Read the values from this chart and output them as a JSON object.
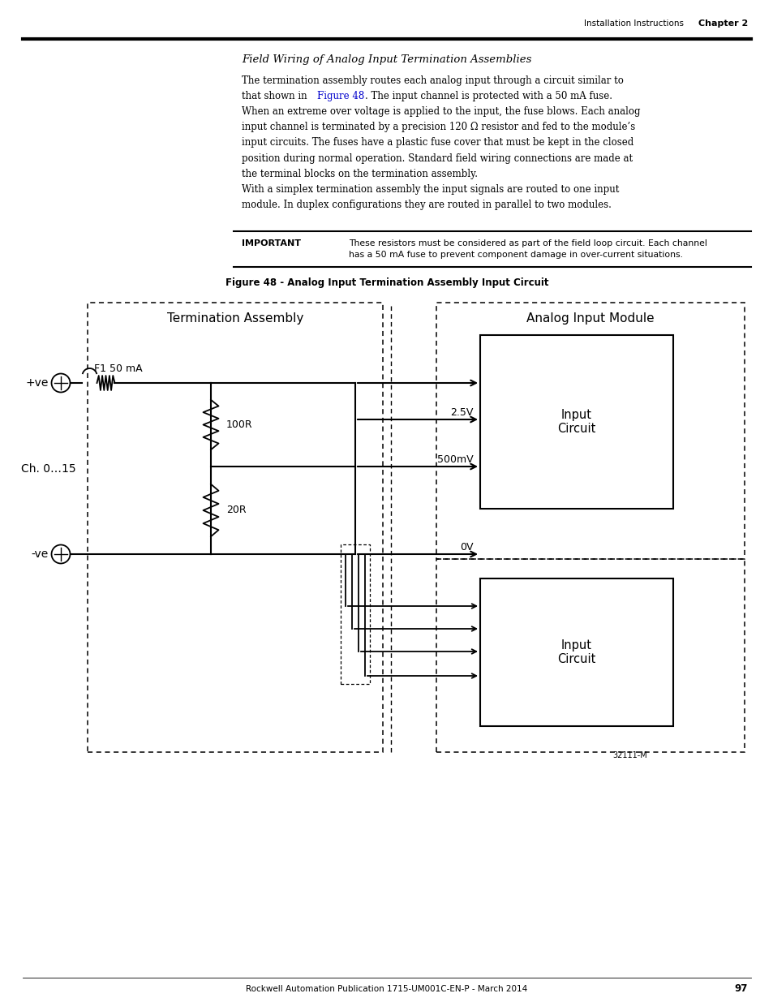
{
  "page_title_left": "Installation Instructions",
  "page_title_right": "Chapter 2",
  "section_title": "Field Wiring of Analog Input Termination Assemblies",
  "body1_line1": "The termination assembly routes each analog input through a circuit similar to",
  "body1_line2a": "that shown in ",
  "body1_line2b": "Figure 48",
  "body1_line2c": ". The input channel is protected with a 50 mA fuse.",
  "body1_line3": "When an extreme over voltage is applied to the input, the fuse blows. Each analog",
  "body1_line4": "input channel is terminated by a precision 120 Ω resistor and fed to the module’s",
  "body1_line5": "input circuits. The fuses have a plastic fuse cover that must be kept in the closed",
  "body1_line6": "position during normal operation. Standard field wiring connections are made at",
  "body1_line7": "the terminal blocks on the termination assembly.",
  "body2_line1": "With a simplex termination assembly the input signals are routed to one input",
  "body2_line2": "module. In duplex configurations they are routed in parallel to two modules.",
  "important_label": "IMPORTANT",
  "important_line1": "These resistors must be considered as part of the field loop circuit. Each channel",
  "important_line2": "has a 50 mA fuse to prevent component damage in over-current situations.",
  "figure_caption": "Figure 48 - Analog Input Termination Assembly Input Circuit",
  "label_termination": "Termination Assembly",
  "label_analog": "Analog Input Module",
  "label_pve": "+ve",
  "label_mve": "-ve",
  "label_ch": "Ch. 0…15",
  "label_f1": "F1 50 mA",
  "label_100r": "100R",
  "label_20r": "20R",
  "label_25v": "2.5V",
  "label_500mv": "500mV",
  "label_0v": "0V",
  "label_ic1": "Input\nCircuit",
  "label_ic2": "Input\nCircuit",
  "label_32111m": "32111-M",
  "footer": "Rockwell Automation Publication 1715-UM001C-EN-P - March 2014",
  "page_num": "97",
  "link_color": "#0000cc"
}
